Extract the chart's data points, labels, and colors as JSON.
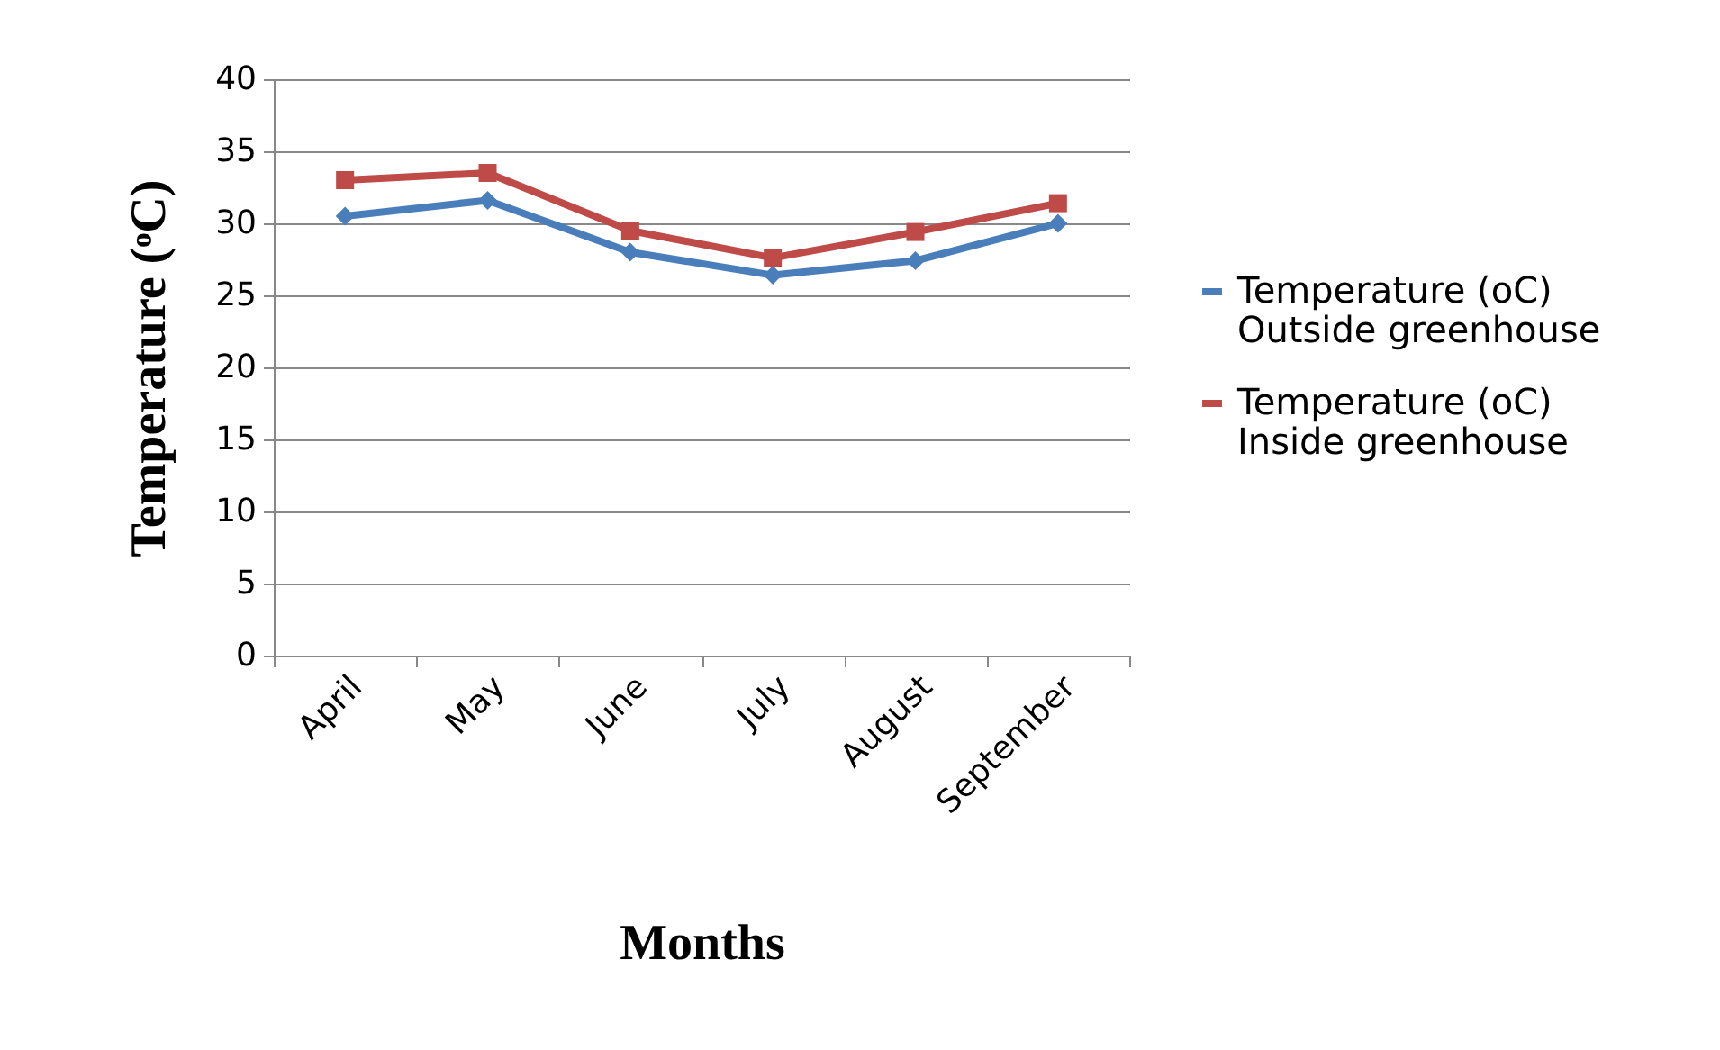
{
  "chart_data": {
    "type": "line",
    "xlabel": "Months",
    "ylabel": "Temperature (ᵒC)",
    "categories": [
      "April",
      "May",
      "June",
      "July",
      "August",
      "September"
    ],
    "series": [
      {
        "name": "Temperature (oC) Outside greenhouse",
        "color": "#4a7ebb",
        "marker": "diamond",
        "values": [
          30.5,
          31.6,
          28,
          26.4,
          27.4,
          30
        ]
      },
      {
        "name": "Temperature (oC) Inside greenhouse",
        "color": "#be4b48",
        "marker": "square",
        "values": [
          33,
          33.5,
          29.5,
          27.6,
          29.4,
          31.4
        ]
      }
    ],
    "ylim": [
      0,
      40
    ],
    "yticks": [
      0,
      5,
      10,
      15,
      20,
      25,
      30,
      35,
      40
    ],
    "grid": "y",
    "legend": "right"
  }
}
